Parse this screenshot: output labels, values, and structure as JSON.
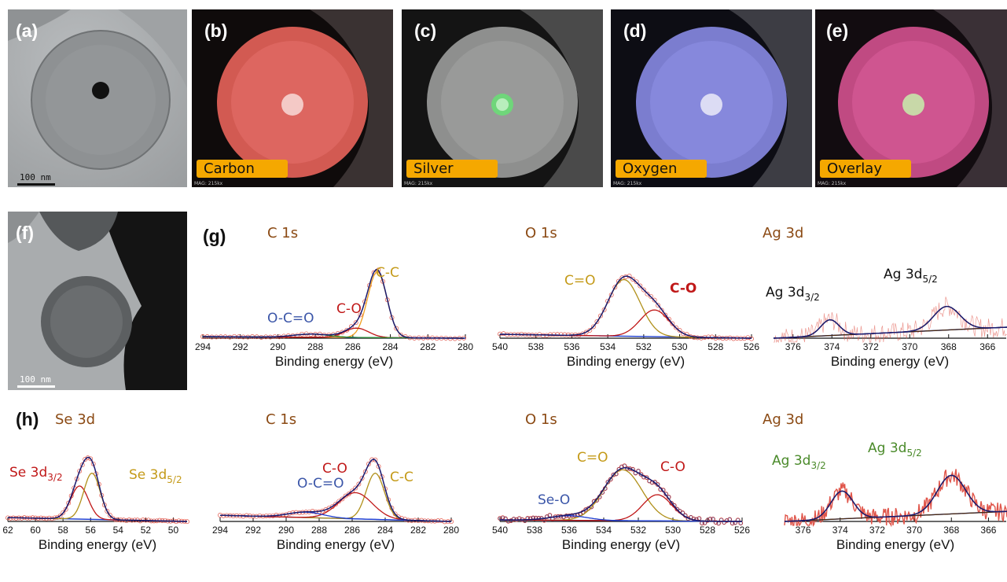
{
  "panels": {
    "a": "(a)",
    "b": "(b)",
    "c": "(c)",
    "d": "(d)",
    "e": "(e)",
    "f": "(f)",
    "g": "(g)",
    "h": "(h)"
  },
  "tem": {
    "scale_label": "100 nm"
  },
  "eds_maps": [
    {
      "label": "Carbon",
      "mag": "MAG: 215kx",
      "color": "#e8564f"
    },
    {
      "label": "Silver",
      "mag": "MAG: 215kx",
      "color": "#4fcf5a"
    },
    {
      "label": "Oxygen",
      "mag": "MAG: 215kx",
      "color": "#8a8cf0"
    },
    {
      "label": "Overlay",
      "mag": "MAG: 215kx",
      "color": "#d4508a"
    }
  ],
  "colors": {
    "data_points": "#e0554a",
    "fit_envelope": "#1a1a6e",
    "background": "#1f3fd0",
    "c_c": "#f0a020",
    "c_o": "#c01818",
    "o_c_o": "#2a8a2a",
    "c_eq_o": "#b0901a",
    "ag_peak": "#4a2a10",
    "ag_raw": "#e0554a"
  },
  "chart_data": [
    {
      "id": "g-c1s",
      "type": "line",
      "title": "C 1s",
      "xlabel": "Binding energy (eV)",
      "xlim": [
        294,
        280
      ],
      "xticks": [
        "294",
        "292",
        "290",
        "288",
        "286",
        "284",
        "282",
        "280"
      ],
      "labels": [
        {
          "text": "C-C",
          "color": "#c49a18"
        },
        {
          "text": "C-O",
          "color": "#c01818"
        },
        {
          "text": "O-C=O",
          "color": "#3a55a8"
        }
      ],
      "components": [
        {
          "name": "C-C",
          "center": 284.7,
          "height": 0.84,
          "fwhm": 1.2
        },
        {
          "name": "C-O",
          "center": 285.8,
          "height": 0.12,
          "fwhm": 1.5
        },
        {
          "name": "O-C=O",
          "center": 288.2,
          "height": 0.04,
          "fwhm": 2.2
        }
      ],
      "baseline": [
        [
          294,
          0.02
        ],
        [
          280,
          0.0
        ]
      ]
    },
    {
      "id": "g-o1s",
      "type": "line",
      "title": "O 1s",
      "xlabel": "Binding energy (eV)",
      "xlim": [
        540,
        526
      ],
      "xticks": [
        "540",
        "538",
        "536",
        "534",
        "532",
        "530",
        "528",
        "526"
      ],
      "labels": [
        {
          "text": "C=O",
          "color": "#c49a18"
        },
        {
          "text": "C-O",
          "color": "#c01818"
        }
      ],
      "components": [
        {
          "name": "C=O",
          "center": 533.1,
          "height": 0.72,
          "fwhm": 2.1
        },
        {
          "name": "C-O",
          "center": 531.4,
          "height": 0.34,
          "fwhm": 1.9
        }
      ],
      "baseline": [
        [
          540,
          0.05
        ],
        [
          526,
          0.0
        ]
      ]
    },
    {
      "id": "g-ag3d",
      "type": "line",
      "title": "Ag 3d",
      "xlabel": "Binding energy (eV)",
      "xlim": [
        377,
        365
      ],
      "xticks": [
        "376",
        "374",
        "372",
        "370",
        "368",
        "366"
      ],
      "labels": [
        {
          "text": "Ag 3d",
          "sub": "3/2",
          "color": "#111111"
        },
        {
          "text": "Ag 3d",
          "sub": "5/2",
          "color": "#111111"
        }
      ],
      "components": [
        {
          "name": "Ag 3d3/2",
          "center": 374.1,
          "height": 0.2,
          "fwhm": 1.1
        },
        {
          "name": "Ag 3d5/2",
          "center": 368.1,
          "height": 0.3,
          "fwhm": 1.6
        }
      ],
      "baseline": [
        [
          377,
          0.0
        ],
        [
          365,
          0.14
        ]
      ]
    },
    {
      "id": "h-se3d",
      "type": "line",
      "title": "Se 3d",
      "xlabel": "Binding energy (eV)",
      "xlim": [
        62,
        49
      ],
      "xticks": [
        "62",
        "60",
        "58",
        "56",
        "54",
        "52",
        "50"
      ],
      "labels": [
        {
          "text": "Se 3d",
          "sub": "3/2",
          "color": "#c01818"
        },
        {
          "text": "Se 3d",
          "sub": "5/2",
          "color": "#c49a18"
        }
      ],
      "components": [
        {
          "name": "Se 3d3/2",
          "center": 56.8,
          "height": 0.43,
          "fwhm": 1.5
        },
        {
          "name": "Se 3d5/2",
          "center": 55.9,
          "height": 0.6,
          "fwhm": 1.4
        }
      ],
      "baseline": [
        [
          62,
          0.05
        ],
        [
          49,
          0.0
        ]
      ]
    },
    {
      "id": "h-c1s",
      "type": "line",
      "title": "C 1s",
      "xlabel": "Binding energy (eV)",
      "xlim": [
        294,
        280
      ],
      "xticks": [
        "294",
        "292",
        "290",
        "288",
        "286",
        "284",
        "282",
        "280"
      ],
      "labels": [
        {
          "text": "C-O",
          "color": "#c01818"
        },
        {
          "text": "O-C=O",
          "color": "#3a55a8"
        },
        {
          "text": "C-C",
          "color": "#c49a18"
        }
      ],
      "components": [
        {
          "name": "C-C",
          "center": 284.6,
          "height": 0.6,
          "fwhm": 1.3
        },
        {
          "name": "C-O",
          "center": 285.8,
          "height": 0.34,
          "fwhm": 2.4
        },
        {
          "name": "O-C=O",
          "center": 288.8,
          "height": 0.07,
          "fwhm": 2.5
        }
      ],
      "baseline": [
        [
          294,
          0.08
        ],
        [
          280,
          0.0
        ]
      ]
    },
    {
      "id": "h-o1s",
      "type": "line",
      "title": "O 1s",
      "xlabel": "Binding energy (eV)",
      "xlim": [
        540,
        526
      ],
      "xticks": [
        "540",
        "538",
        "536",
        "534",
        "532",
        "530",
        "528",
        "526"
      ],
      "labels": [
        {
          "text": "C=O",
          "color": "#c49a18"
        },
        {
          "text": "C-O",
          "color": "#c01818"
        },
        {
          "text": "Se-O",
          "color": "#3a55a8"
        }
      ],
      "components": [
        {
          "name": "C=O",
          "center": 532.9,
          "height": 0.66,
          "fwhm": 2.6
        },
        {
          "name": "C-O",
          "center": 530.9,
          "height": 0.34,
          "fwhm": 2.0
        },
        {
          "name": "Se-O",
          "center": 536.0,
          "height": 0.06,
          "fwhm": 2.5
        }
      ],
      "baseline": [
        [
          540,
          0.02
        ],
        [
          526,
          0.0
        ]
      ]
    },
    {
      "id": "h-ag3d",
      "type": "line",
      "title": "Ag 3d",
      "xlabel": "Binding energy (eV)",
      "xlim": [
        377,
        365
      ],
      "xticks": [
        "376",
        "374",
        "372",
        "370",
        "368",
        "366"
      ],
      "labels": [
        {
          "text": "Ag 3d",
          "sub": "3/2",
          "color": "#4a8a2a"
        },
        {
          "text": "Ag 3d",
          "sub": "5/2",
          "color": "#4a8a2a"
        }
      ],
      "components": [
        {
          "name": "Ag 3d3/2",
          "center": 373.9,
          "height": 0.36,
          "fwhm": 1.4
        },
        {
          "name": "Ag 3d5/2",
          "center": 368.0,
          "height": 0.5,
          "fwhm": 1.8
        }
      ],
      "baseline": [
        [
          377,
          0.0
        ],
        [
          365,
          0.13
        ]
      ]
    }
  ]
}
